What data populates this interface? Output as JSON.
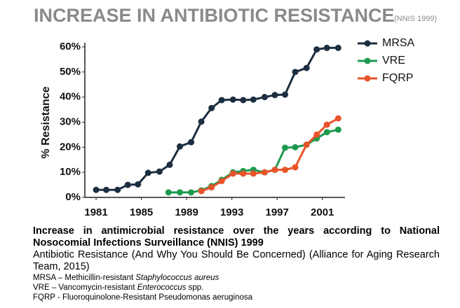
{
  "chart_data": {
    "type": "line",
    "title": "INCREASE IN ANTIBIOTIC RESISTANCE",
    "subtitle": "(NNIS 1999)",
    "y_label": "% Resistance",
    "xlim": [
      1980.5,
      2003
    ],
    "xticks": [
      1981,
      1985,
      1989,
      1993,
      1997,
      2001
    ],
    "ylim": [
      0,
      60
    ],
    "yticks": [
      {
        "value": 0,
        "label": "0%"
      },
      {
        "value": 10,
        "label": "10%"
      },
      {
        "value": 20,
        "label": "20%"
      },
      {
        "value": 30,
        "label": "30%"
      },
      {
        "value": 40,
        "label": "40%"
      },
      {
        "value": 50,
        "label": "50%"
      },
      {
        "value": 60,
        "label": "60%"
      }
    ],
    "legend": "top-right",
    "series": [
      {
        "name": "MRSA",
        "color": "#1c2e40",
        "x": [
          1981,
          1981.9,
          1982.9,
          1983.8,
          1984.7,
          1985.6,
          1986.6,
          1987.5,
          1988.4,
          1989.4,
          1990.3,
          1991.2,
          1992.1,
          1993.1,
          1994.0,
          1994.9,
          1995.9,
          1996.8,
          1997.7,
          1998.6,
          1999.6,
          2000.5,
          2001.4,
          2002.4
        ],
        "values": [
          3,
          3,
          3,
          5,
          5.2,
          9.8,
          10.3,
          13,
          20.3,
          22,
          30.2,
          35.6,
          38.8,
          39,
          38.8,
          39,
          40,
          40.8,
          41,
          50,
          51.6,
          59,
          59.6,
          59.6
        ]
      },
      {
        "name": "VRE",
        "color": "#1e9a4f",
        "x": [
          1987.4,
          1988.4,
          1989.4,
          1990.3,
          1991.2,
          1992.1,
          1993.1,
          1994.0,
          1994.9,
          1995.9,
          1996.8,
          1997.7,
          1998.6,
          1999.6,
          2000.5,
          2001.4,
          2002.4
        ],
        "values": [
          2,
          2,
          2,
          2.8,
          4.5,
          7,
          10,
          10.5,
          11,
          10,
          11,
          19.8,
          20,
          21,
          23.5,
          26,
          27
        ]
      },
      {
        "name": "FQRP",
        "color": "#e8532a",
        "x": [
          1990.3,
          1991.2,
          1992.1,
          1993.1,
          1994.0,
          1994.9,
          1995.9,
          1996.8,
          1997.7,
          1998.6,
          1999.6,
          2000.5,
          2001.4,
          2002.4
        ],
        "values": [
          2.5,
          4,
          6.5,
          9.5,
          9.5,
          9.5,
          10,
          11,
          11,
          12,
          21,
          25,
          29,
          31.5
        ]
      }
    ]
  },
  "caption": {
    "bold": "Increase in antimicrobial resistance over the years according to National Nosocomial Infections Surveillance (NNIS) 1999",
    "source": "Antibiotic Resistance (And Why You Should Be Concerned) (Alliance for Aging Research Team, 2015)",
    "notes": [
      {
        "text": "MRSA – Methicillin-resistant ",
        "italic": "Staphylococcus aureus"
      },
      {
        "text": "VRE – Vancomycin-resistant ",
        "italic": "Enterococcus",
        "rest": " spp."
      },
      {
        "text": "FQRP - Fluoroquinolone-Resistant Pseudomonas aeruginosa"
      }
    ]
  }
}
